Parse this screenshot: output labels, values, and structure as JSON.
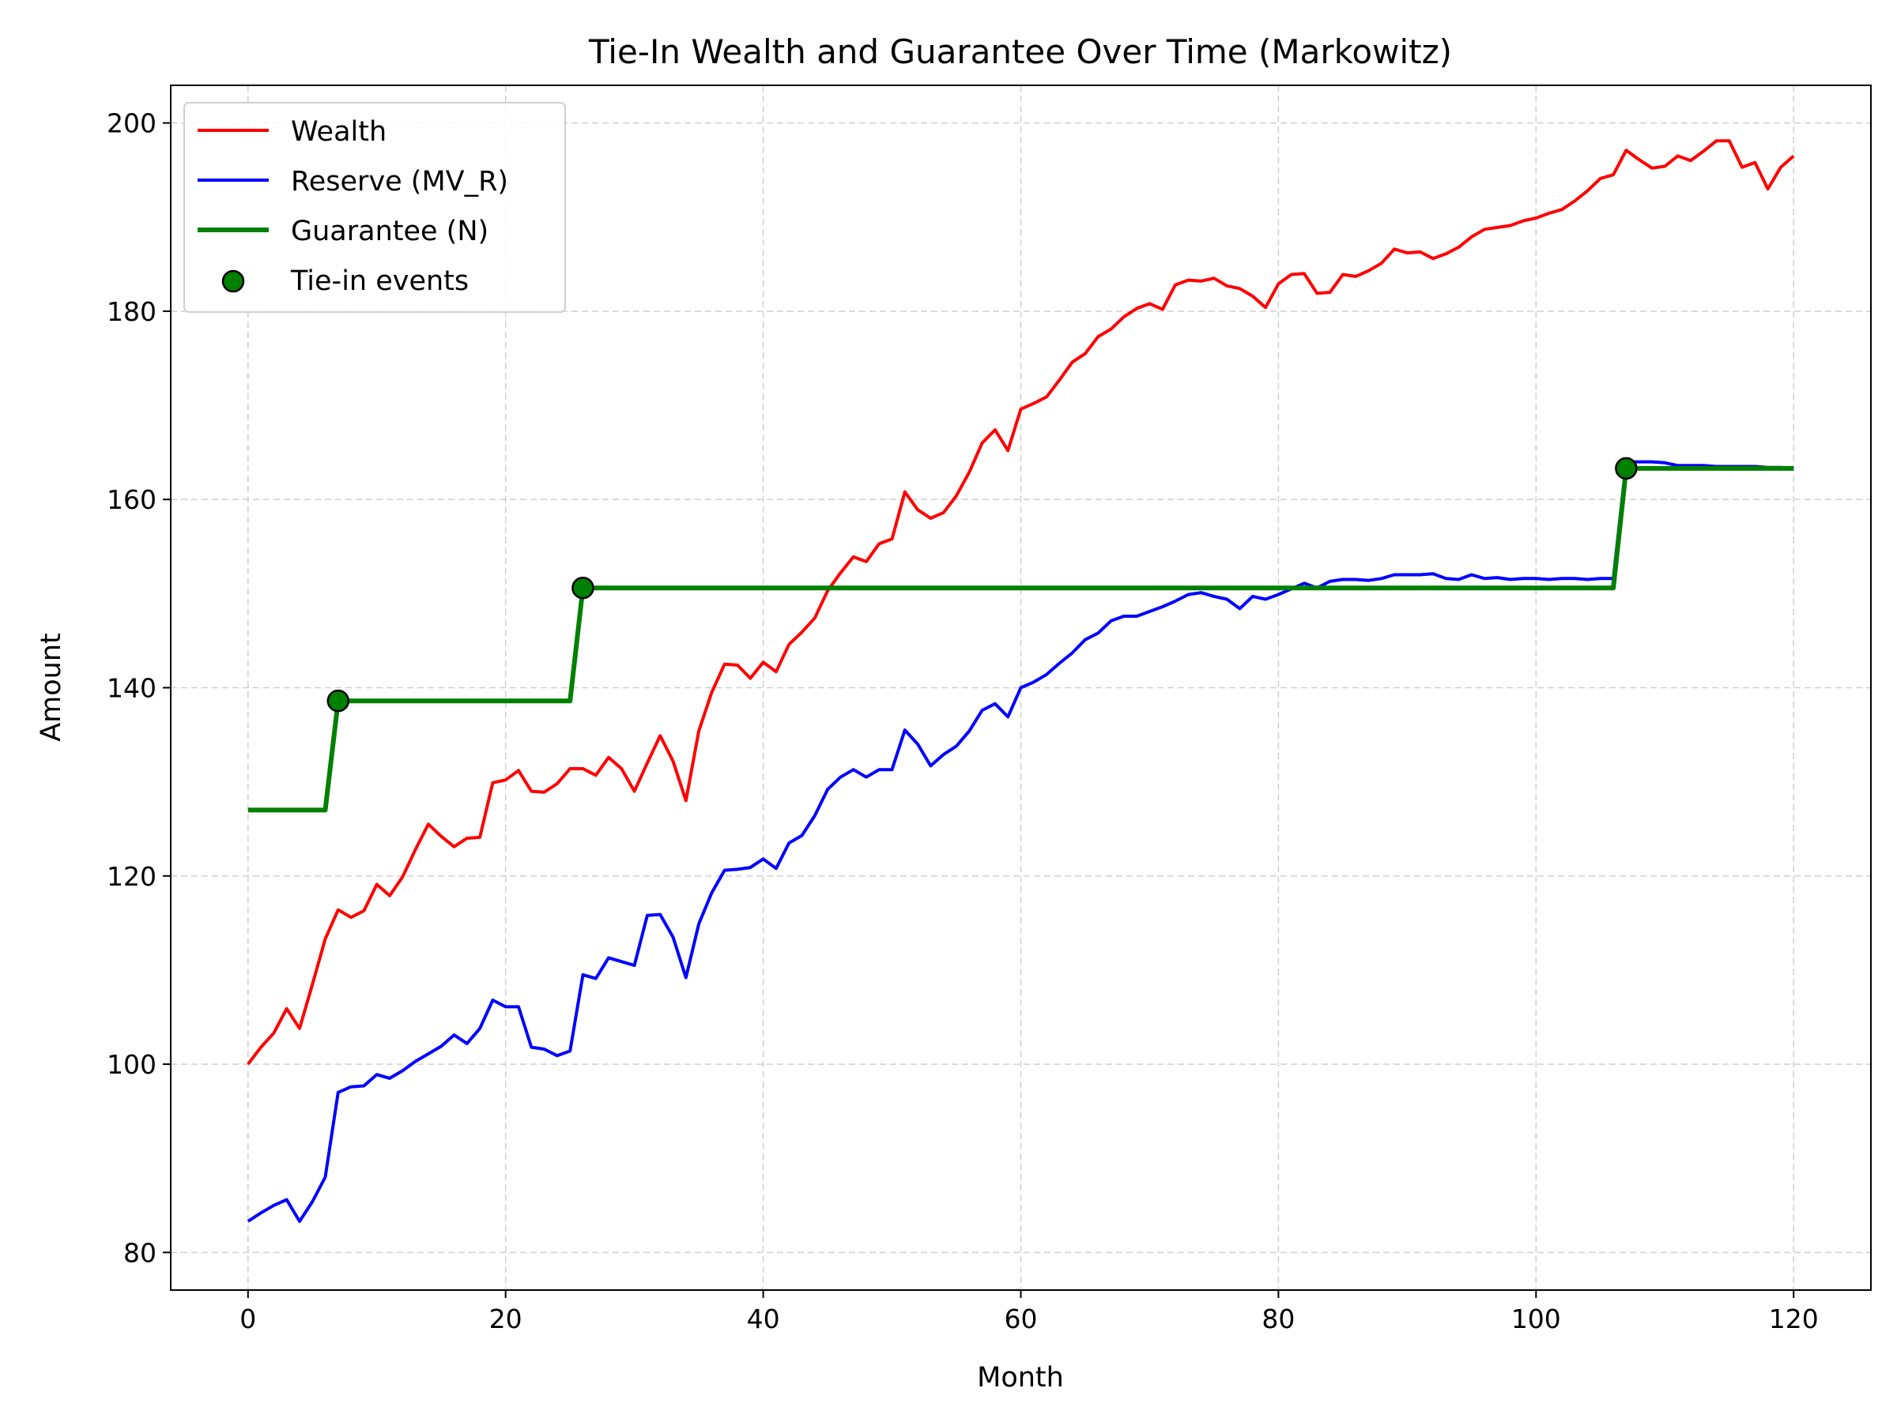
{
  "chart_data": {
    "type": "line",
    "title": "Tie-In Wealth and Guarantee Over Time (Markowitz)",
    "xlabel": "Month",
    "ylabel": "Amount",
    "xlim": [
      -6,
      126
    ],
    "ylim": [
      76,
      204
    ],
    "xticks": [
      0,
      20,
      40,
      60,
      80,
      100,
      120
    ],
    "yticks": [
      80,
      100,
      120,
      140,
      160,
      180,
      200
    ],
    "grid": true,
    "legend_position": "top-left",
    "series": [
      {
        "name": "Wealth",
        "color": "#ff0000",
        "style": "line",
        "x": [
          0,
          1,
          2,
          3,
          4,
          5,
          6,
          7,
          8,
          9,
          10,
          11,
          12,
          13,
          14,
          15,
          16,
          17,
          18,
          19,
          20,
          21,
          22,
          23,
          24,
          25,
          26,
          27,
          28,
          29,
          30,
          31,
          32,
          33,
          34,
          35,
          36,
          37,
          38,
          39,
          40,
          41,
          42,
          43,
          44,
          45,
          46,
          47,
          48,
          49,
          50,
          51,
          52,
          53,
          54,
          55,
          56,
          57,
          58,
          59,
          60,
          61,
          62,
          63,
          64,
          65,
          66,
          67,
          68,
          69,
          70,
          71,
          72,
          73,
          74,
          75,
          76,
          77,
          78,
          79,
          80,
          81,
          82,
          83,
          84,
          85,
          86,
          87,
          88,
          89,
          90,
          91,
          92,
          93,
          94,
          95,
          96,
          97,
          98,
          99,
          100,
          101,
          102,
          103,
          104,
          105,
          106,
          107,
          108,
          109,
          110,
          111,
          112,
          113,
          114,
          115,
          116,
          117,
          118,
          119,
          120
        ],
        "y": [
          100,
          101.8,
          103.3,
          105.9,
          103.8,
          108.5,
          113.3,
          116.4,
          115.6,
          116.3,
          119.1,
          117.9,
          119.9,
          122.8,
          125.5,
          124.2,
          123.1,
          124.0,
          124.1,
          129.9,
          130.2,
          131.2,
          129.0,
          128.9,
          129.8,
          131.4,
          131.4,
          130.7,
          132.6,
          131.4,
          129.0,
          132.0,
          134.9,
          132.2,
          128.0,
          135.4,
          139.5,
          142.5,
          142.4,
          141.0,
          142.7,
          141.7,
          144.6,
          145.9,
          147.4,
          150.3,
          152.2,
          153.9,
          153.4,
          155.3,
          155.8,
          160.8,
          158.9,
          158.0,
          158.6,
          160.4,
          162.9,
          166.0,
          167.4,
          165.2,
          169.6,
          170.2,
          170.9,
          172.7,
          174.6,
          175.5,
          177.3,
          178.1,
          179.4,
          180.3,
          180.8,
          180.2,
          182.8,
          183.3,
          183.2,
          183.5,
          182.7,
          182.4,
          181.6,
          180.4,
          182.9,
          183.9,
          184.0,
          181.9,
          182.0,
          183.9,
          183.7,
          184.3,
          185.1,
          186.6,
          186.2,
          186.3,
          185.6,
          186.1,
          186.8,
          187.9,
          188.7,
          188.9,
          189.1,
          189.6,
          189.9,
          190.4,
          190.8,
          191.7,
          192.8,
          194.1,
          194.5,
          197.1,
          196.1,
          195.2,
          195.4,
          196.5,
          196.0,
          197.0,
          198.1,
          198.1,
          195.3,
          195.8,
          193.0,
          195.3,
          196.5
        ]
      },
      {
        "name": "Reserve (MV_R)",
        "color": "#0000ff",
        "style": "line",
        "x": [
          0,
          1,
          2,
          3,
          4,
          5,
          6,
          7,
          8,
          9,
          10,
          11,
          12,
          13,
          14,
          15,
          16,
          17,
          18,
          19,
          20,
          21,
          22,
          23,
          24,
          25,
          26,
          27,
          28,
          29,
          30,
          31,
          32,
          33,
          34,
          35,
          36,
          37,
          38,
          39,
          40,
          41,
          42,
          43,
          44,
          45,
          46,
          47,
          48,
          49,
          50,
          51,
          52,
          53,
          54,
          55,
          56,
          57,
          58,
          59,
          60,
          61,
          62,
          63,
          64,
          65,
          66,
          67,
          68,
          69,
          70,
          71,
          72,
          73,
          74,
          75,
          76,
          77,
          78,
          79,
          80,
          81,
          82,
          83,
          84,
          85,
          86,
          87,
          88,
          89,
          90,
          91,
          92,
          93,
          94,
          95,
          96,
          97,
          98,
          99,
          100,
          101,
          102,
          103,
          104,
          105,
          106,
          107,
          108,
          109,
          110,
          111,
          112,
          113,
          114,
          115,
          116,
          117,
          118,
          119,
          120
        ],
        "y": [
          83.3,
          84.2,
          85.0,
          85.6,
          83.3,
          85.4,
          88.0,
          97.0,
          97.6,
          97.7,
          98.9,
          98.5,
          99.3,
          100.3,
          101.1,
          101.9,
          103.1,
          102.2,
          103.8,
          106.8,
          106.1,
          106.1,
          101.8,
          101.6,
          100.9,
          101.4,
          109.5,
          109.1,
          111.3,
          110.9,
          110.5,
          115.8,
          115.9,
          113.5,
          109.2,
          114.9,
          118.2,
          120.6,
          120.7,
          120.9,
          121.8,
          120.8,
          123.5,
          124.3,
          126.4,
          129.2,
          130.5,
          131.3,
          130.5,
          131.3,
          131.3,
          135.5,
          134.0,
          131.7,
          132.9,
          133.8,
          135.4,
          137.6,
          138.3,
          136.9,
          140.0,
          140.6,
          141.4,
          142.6,
          143.7,
          145.1,
          145.8,
          147.1,
          147.6,
          147.6,
          148.1,
          148.6,
          149.2,
          149.9,
          150.1,
          149.7,
          149.4,
          148.4,
          149.7,
          149.4,
          149.9,
          150.5,
          151.1,
          150.6,
          151.3,
          151.5,
          151.5,
          151.4,
          151.6,
          152.0,
          152.0,
          152.0,
          152.1,
          151.6,
          151.5,
          152.0,
          151.6,
          151.7,
          151.5,
          151.6,
          151.6,
          151.5,
          151.6,
          151.6,
          151.5,
          151.6,
          151.6,
          164.0,
          164.0,
          164.0,
          163.9,
          163.6,
          163.6,
          163.6,
          163.5,
          163.5,
          163.5,
          163.5,
          163.4,
          163.4,
          163.3
        ]
      },
      {
        "name": "Guarantee (N)",
        "color": "#008000",
        "style": "thick-line",
        "x": [
          0,
          6,
          7,
          25,
          26,
          106,
          107,
          120
        ],
        "y": [
          127,
          127,
          138.6,
          138.6,
          150.6,
          150.6,
          163.3,
          163.3
        ]
      },
      {
        "name": "Tie-in events",
        "color": "#008000",
        "style": "markers",
        "x": [
          7,
          26,
          107
        ],
        "y": [
          138.6,
          150.6,
          163.3
        ]
      }
    ]
  }
}
